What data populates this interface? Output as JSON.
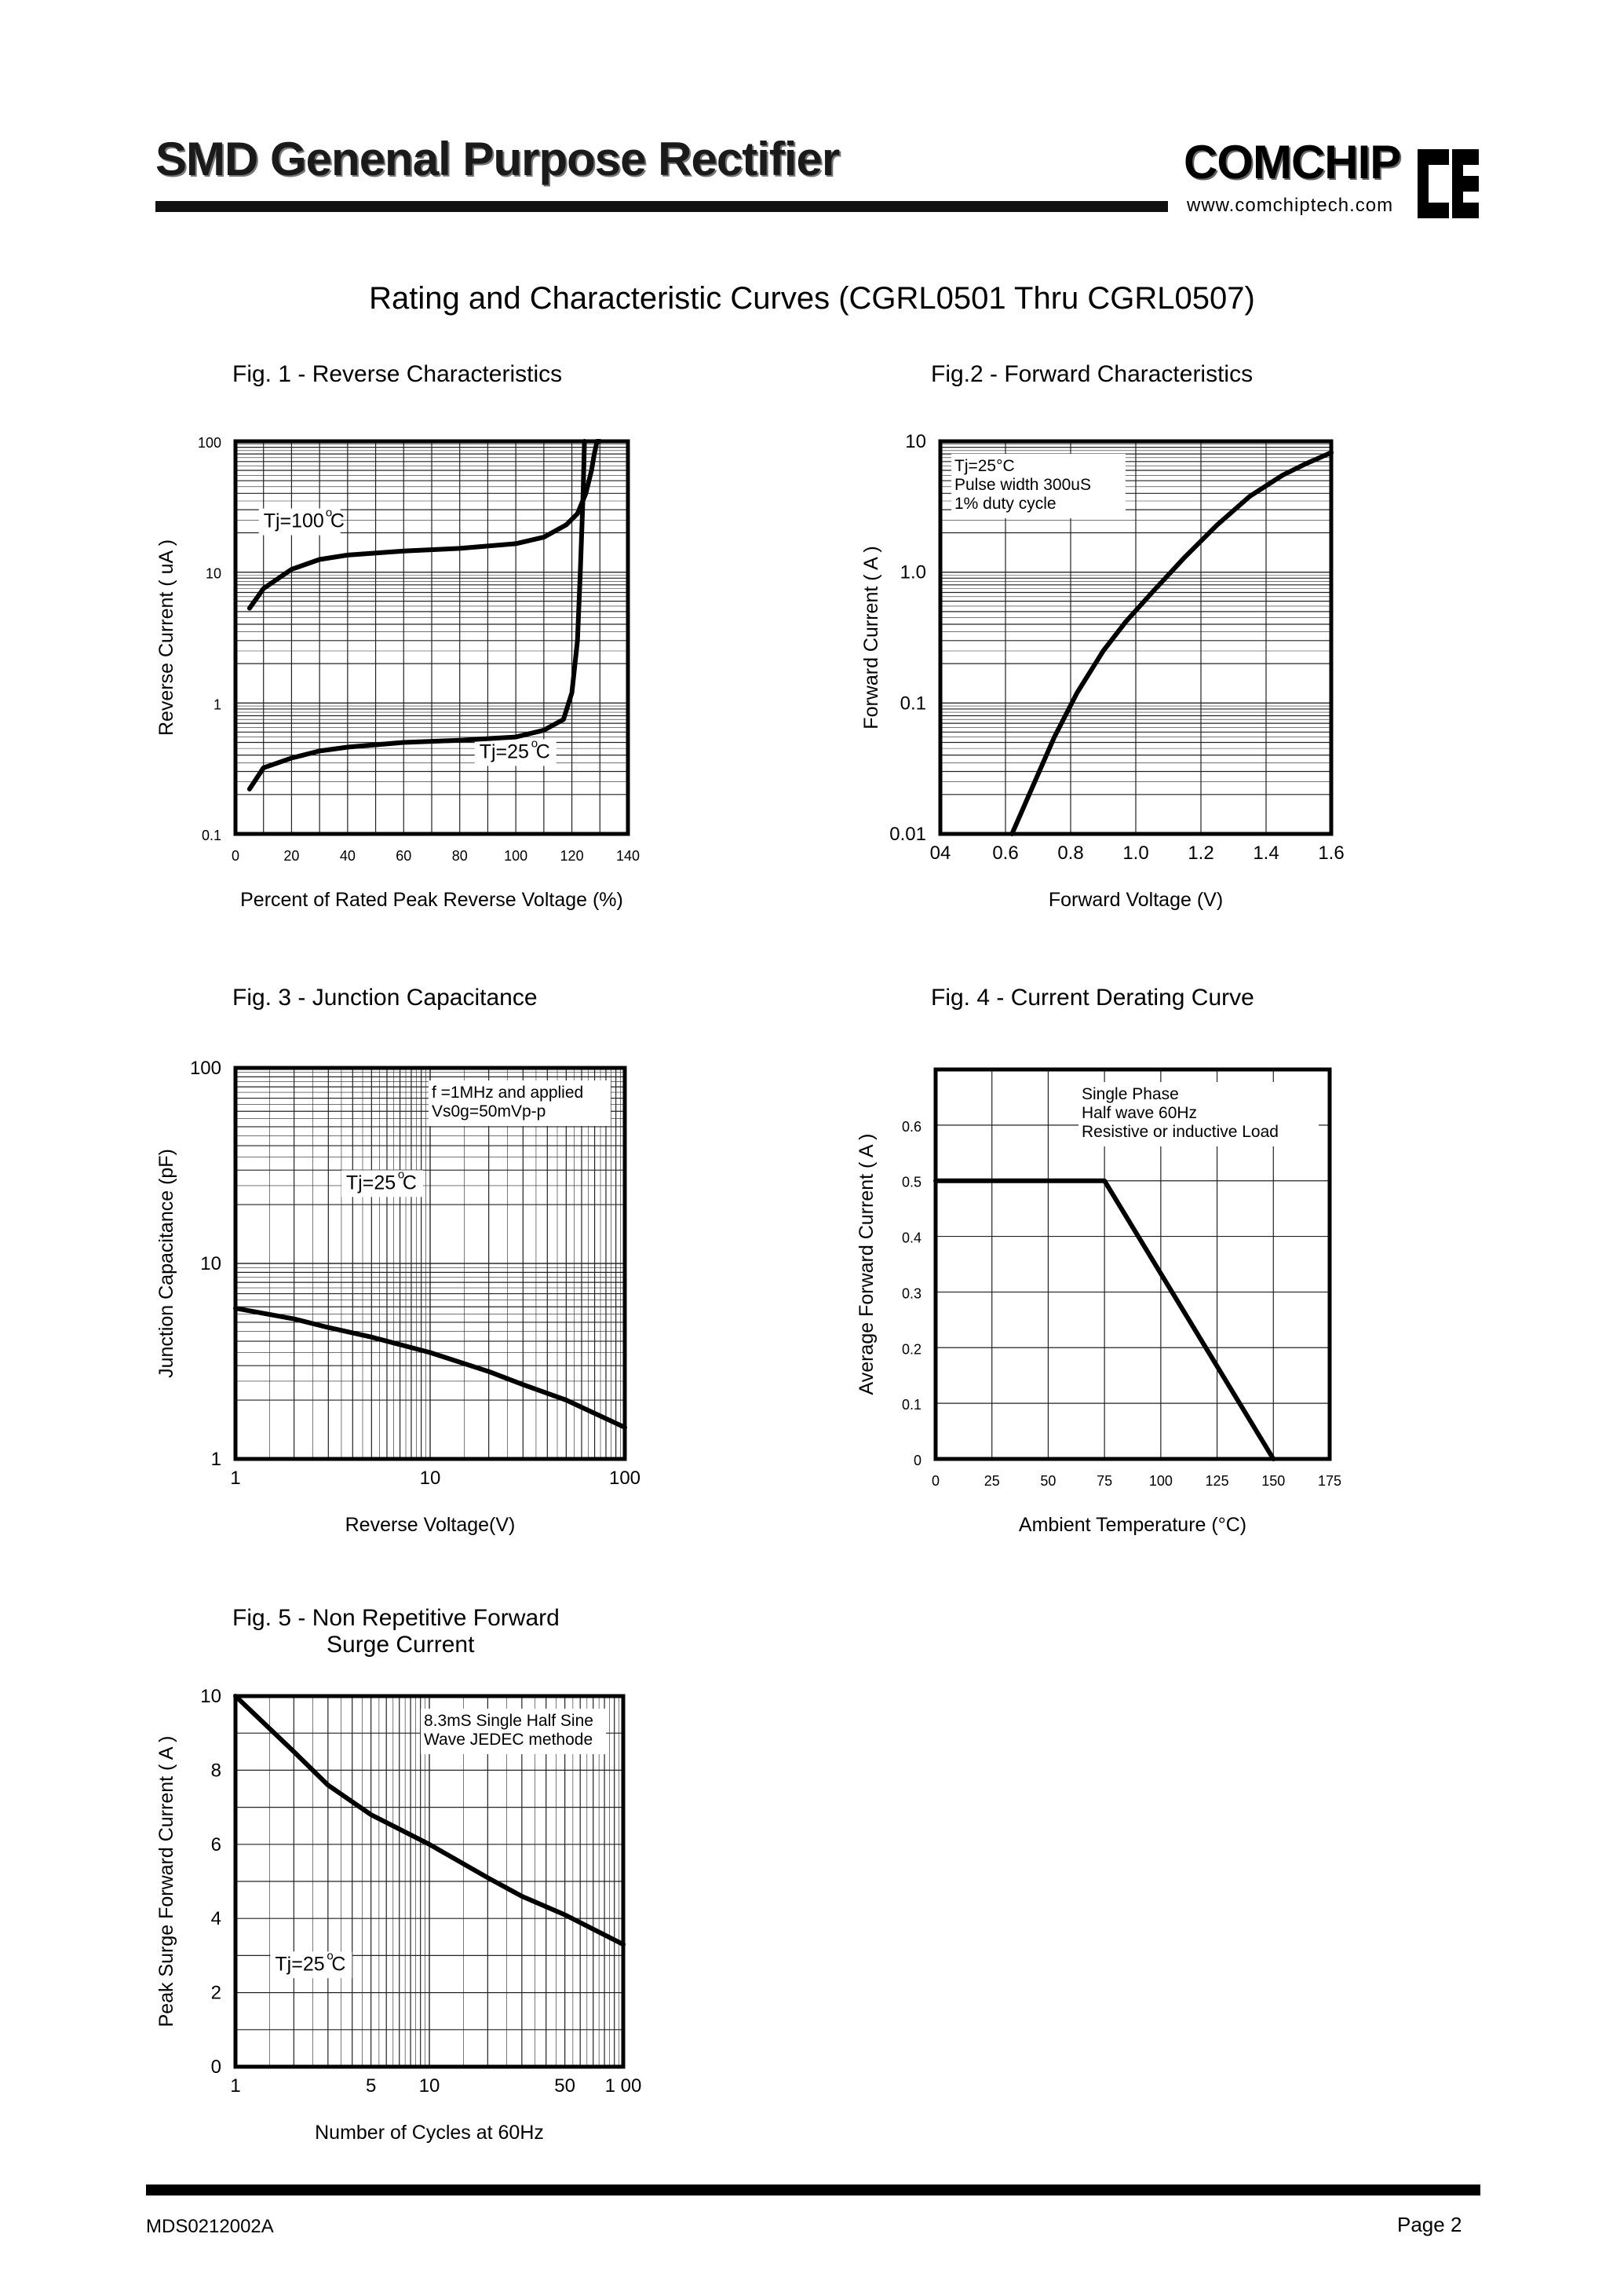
{
  "header": {
    "title": "SMD Genenal Purpose Rectifier",
    "brand": "COMCHIP",
    "url": "www.comchiptech.com"
  },
  "page_heading": "Rating and Characteristic Curves (CGRL0501 Thru CGRL0507)",
  "footer": {
    "doc_id": "MDS0212002A",
    "page": "Page 2"
  },
  "chart_data": [
    {
      "type": "line",
      "title": "Fig. 1 -  Reverse Characteristics",
      "xlabel": "Percent of Rated Peak Reverse Voltage (%)",
      "ylabel": "Reverse Current ( uA )",
      "xlim": [
        0,
        140
      ],
      "ylim": [
        0.1,
        100
      ],
      "yscale": "log",
      "x_ticks": [
        "0",
        "20",
        "40",
        "60",
        "80",
        "100",
        "120",
        "140"
      ],
      "y_ticks": [
        {
          "v": 100,
          "t": "100"
        },
        {
          "v": 10,
          "t": "10"
        },
        {
          "v": 1,
          "t": "1"
        },
        {
          "v": 0.1,
          "t": "0.1"
        }
      ],
      "grid": true,
      "annotations": [
        {
          "text": "Tj=100",
          "sup": "o",
          "unit": "C",
          "x": 10,
          "y": 22
        },
        {
          "text": "Tj=25",
          "sup": "o",
          "unit": "C",
          "x": 87,
          "y": 0.38
        }
      ],
      "series": [
        {
          "x": [
            5,
            10,
            20,
            30,
            40,
            60,
            80,
            100,
            110,
            118,
            122,
            125,
            127,
            128,
            129,
            130
          ],
          "y": [
            5.3,
            7.5,
            10.5,
            12.5,
            13.5,
            14.5,
            15.2,
            16.5,
            18.5,
            23,
            28,
            40,
            60,
            80,
            100,
            100
          ]
        },
        {
          "x": [
            5,
            10,
            20,
            30,
            40,
            60,
            80,
            100,
            110,
            117,
            120,
            122,
            123,
            124,
            124.5
          ],
          "y": [
            0.22,
            0.32,
            0.38,
            0.43,
            0.46,
            0.5,
            0.52,
            0.55,
            0.62,
            0.75,
            1.2,
            3,
            10,
            40,
            100
          ]
        }
      ]
    },
    {
      "type": "line",
      "title": "Fig.2 -  Forward Characteristics",
      "xlabel": "Forward Voltage (V)",
      "ylabel": "Forward Current ( A )",
      "xlim": [
        0.4,
        1.6
      ],
      "ylim": [
        0.01,
        10
      ],
      "yscale": "log",
      "x_ticks": [
        {
          "v": 0.4,
          "t": "04"
        },
        {
          "v": 0.6,
          "t": "0.6"
        },
        {
          "v": 0.8,
          "t": "0.8"
        },
        {
          "v": 1.0,
          "t": "1.0"
        },
        {
          "v": 1.2,
          "t": "1.2"
        },
        {
          "v": 1.4,
          "t": "1.4"
        },
        {
          "v": 1.6,
          "t": "1.6"
        }
      ],
      "y_ticks": [
        {
          "v": 10,
          "t": "10"
        },
        {
          "v": 1,
          "t": "1.0"
        },
        {
          "v": 0.1,
          "t": "0.1"
        },
        {
          "v": 0.01,
          "t": "0.01"
        }
      ],
      "grid": true,
      "note": [
        "Tj=25°C",
        "Pulse width 300uS",
        "1% duty cycle"
      ],
      "series": [
        {
          "x": [
            0.62,
            0.68,
            0.75,
            0.82,
            0.9,
            0.97,
            1.05,
            1.15,
            1.25,
            1.35,
            1.45,
            1.52,
            1.6
          ],
          "y": [
            0.01,
            0.022,
            0.055,
            0.12,
            0.25,
            0.42,
            0.7,
            1.3,
            2.3,
            3.8,
            5.5,
            6.7,
            8.2
          ]
        }
      ]
    },
    {
      "type": "line",
      "title": "Fig. 3 -  Junction Capacitance",
      "xlabel": "Reverse Voltage(V)",
      "ylabel": "Junction Capacitance  (pF)",
      "xlim": [
        1,
        100
      ],
      "ylim": [
        1,
        100
      ],
      "xscale": "log",
      "yscale": "log",
      "x_ticks": [
        {
          "v": 1,
          "t": "1"
        },
        {
          "v": 10,
          "t": "10"
        },
        {
          "v": 100,
          "t": "100"
        }
      ],
      "y_ticks": [
        {
          "v": 100,
          "t": "100"
        },
        {
          "v": 10,
          "t": "10"
        },
        {
          "v": 1,
          "t": "1"
        }
      ],
      "grid": true,
      "note": [
        "f =1MHz and applied",
        "Vs0g=50mVp-p"
      ],
      "annotations": [
        {
          "text": "Tj=25",
          "sup": "o",
          "unit": "C",
          "x": 3.7,
          "y": 24
        }
      ],
      "series": [
        {
          "x": [
            1,
            2,
            3,
            5,
            10,
            20,
            30,
            50,
            100
          ],
          "y": [
            5.9,
            5.2,
            4.7,
            4.2,
            3.5,
            2.8,
            2.4,
            2.0,
            1.45
          ]
        }
      ]
    },
    {
      "type": "line",
      "title": "Fig. 4 - Current Derating Curve",
      "xlabel": "Ambient Temperature (°C)",
      "ylabel": "Average Forward Current ( A )",
      "xlim": [
        0,
        175
      ],
      "ylim": [
        0,
        0.7
      ],
      "x_ticks": [
        "0",
        "25",
        "50",
        "75",
        "100",
        "125",
        "150",
        "175"
      ],
      "y_ticks": [
        "0",
        "0.1",
        "0.2",
        "0.3",
        "0.4",
        "0.5",
        "0.6"
      ],
      "grid": true,
      "note": [
        "Single Phase",
        "Half wave 60Hz",
        "Resistive or inductive Load"
      ],
      "series": [
        {
          "x": [
            0,
            75,
            150
          ],
          "y": [
            0.5,
            0.5,
            0
          ]
        }
      ]
    },
    {
      "type": "line",
      "title": "Fig. 5 -  Non Repetitive Forward",
      "title_line2": "Surge Current",
      "xlabel": "Number of Cycles at 60Hz",
      "ylabel": "Peak Surge Forward Current ( A )",
      "xlim": [
        1,
        100
      ],
      "ylim": [
        0,
        10
      ],
      "xscale": "log",
      "x_ticks": [
        {
          "v": 1,
          "t": "1"
        },
        {
          "v": 5,
          "t": "5"
        },
        {
          "v": 10,
          "t": "10"
        },
        {
          "v": 50,
          "t": "50"
        },
        {
          "v": 100,
          "t": "1 00"
        }
      ],
      "y_ticks": [
        "0",
        "2",
        "4",
        "6",
        "8",
        "10"
      ],
      "grid": true,
      "note": [
        "8.3mS Single Half Sine",
        "Wave JEDEC methode"
      ],
      "annotations": [
        {
          "text": "Tj=25",
          "sup": "o",
          "unit": "C",
          "x": 1.6,
          "y": 2.6
        }
      ],
      "series": [
        {
          "x": [
            1,
            2,
            3,
            5,
            10,
            20,
            30,
            50,
            100
          ],
          "y": [
            10,
            8.5,
            7.6,
            6.8,
            6.0,
            5.1,
            4.6,
            4.1,
            3.3
          ]
        }
      ]
    }
  ]
}
